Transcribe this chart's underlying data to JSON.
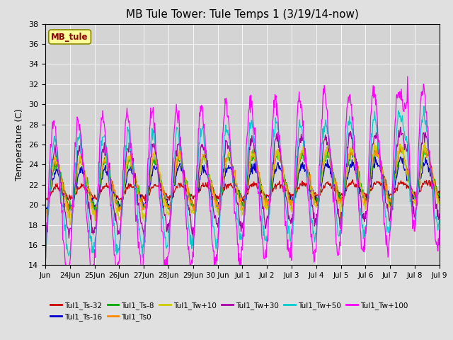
{
  "title": "MB Tule Tower: Tule Temps 1 (3/19/14-now)",
  "ylabel": "Temperature (C)",
  "ylim": [
    14,
    38
  ],
  "yticks": [
    14,
    16,
    18,
    20,
    22,
    24,
    26,
    28,
    30,
    32,
    34,
    36,
    38
  ],
  "fig_bg": "#e0e0e0",
  "plot_bg": "#d4d4d4",
  "grid_color": "#ffffff",
  "legend_box_label": "MB_tule",
  "series": [
    {
      "label": "Tul1_Ts-32",
      "color": "#cc0000",
      "base": 21.2,
      "amp": 0.6,
      "phase_shift": 0.0,
      "trend": 0.02,
      "noise": 0.15
    },
    {
      "label": "Tul1_Ts-16",
      "color": "#0000cc",
      "base": 21.5,
      "amp": 1.8,
      "phase_shift": 0.1,
      "trend": 0.03,
      "noise": 0.25
    },
    {
      "label": "Tul1_Ts-8",
      "color": "#00aa00",
      "base": 21.8,
      "amp": 2.3,
      "phase_shift": 0.15,
      "trend": 0.035,
      "noise": 0.25
    },
    {
      "label": "Tul1_Ts0",
      "color": "#ff8800",
      "base": 21.8,
      "amp": 2.5,
      "phase_shift": 0.2,
      "trend": 0.04,
      "noise": 0.3
    },
    {
      "label": "Tul1_Tw+10",
      "color": "#cccc00",
      "base": 21.5,
      "amp": 2.8,
      "phase_shift": 0.25,
      "trend": 0.04,
      "noise": 0.3
    },
    {
      "label": "Tul1_Tw+30",
      "color": "#aa00aa",
      "base": 21.2,
      "amp": 4.0,
      "phase_shift": 0.4,
      "trend": 0.05,
      "noise": 0.35
    },
    {
      "label": "Tul1_Tw+50",
      "color": "#00cccc",
      "base": 20.8,
      "amp": 5.5,
      "phase_shift": 0.6,
      "trend": 0.06,
      "noise": 0.4
    },
    {
      "label": "Tul1_Tw+100",
      "color": "#ff00ff",
      "base": 20.5,
      "amp": 7.5,
      "phase_shift": 0.8,
      "trend": 0.08,
      "noise": 0.5
    }
  ],
  "x_tick_labels": [
    "Jun",
    "24Jun",
    "25Jun",
    "26Jun",
    "27Jun",
    "28Jun",
    "29Jun",
    "30 Jun",
    "Jul 1",
    "Jul 2",
    "Jul 3",
    "Jul 4",
    "Jul 5",
    "Jul 6",
    "Jul 7",
    "Jul 8",
    "Jul 9"
  ],
  "n_days": 16,
  "pts_per_day": 48
}
